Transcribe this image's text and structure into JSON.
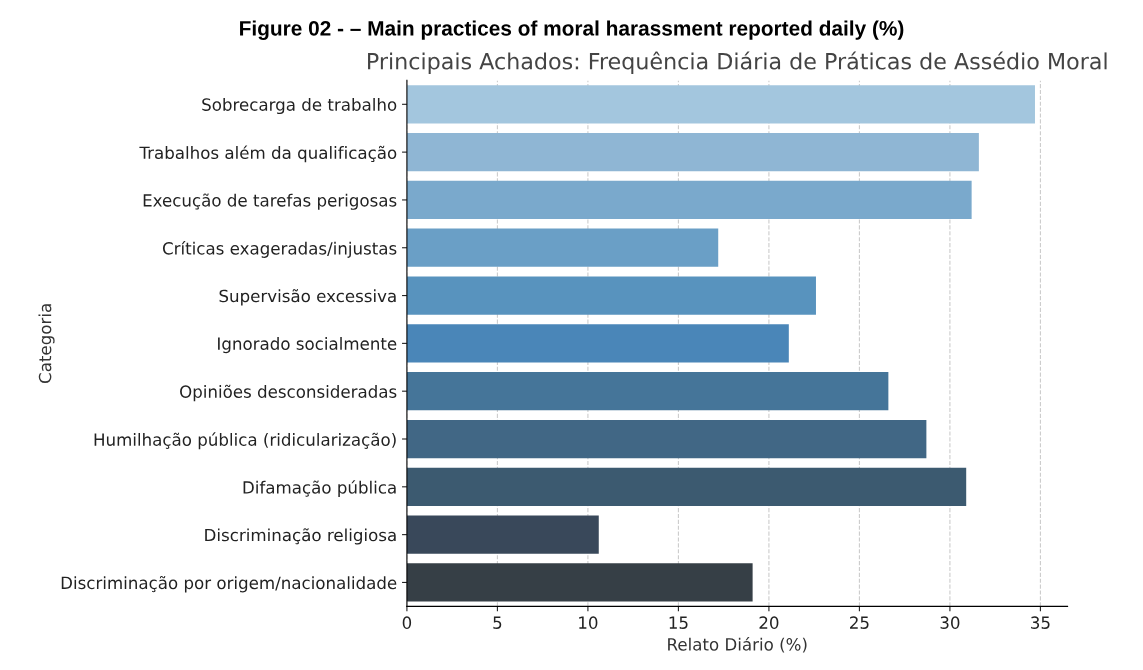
{
  "chart_data": {
    "type": "bar",
    "orientation": "horizontal",
    "title": "Figure 02 - – Main practices of moral harassment reported daily (%)",
    "subtitle": "Principais Achados: Frequência Diária de Práticas de Assédio Moral",
    "xlabel": "Relato Diário (%)",
    "ylabel": "Categoria",
    "categories": [
      "Sobrecarga de trabalho",
      "Trabalhos além da qualificação",
      "Execução de tarefas perigosas",
      "Críticas exageradas/injustas",
      "Supervisão excessiva",
      "Ignorado socialmente",
      "Opiniões desconsideradas",
      "Humilhação pública (ridicularização)",
      "Difamação pública",
      "Discriminação religiosa",
      "Discriminação por origem/nacionalidade"
    ],
    "values": [
      34.7,
      31.6,
      31.2,
      17.2,
      22.6,
      21.1,
      26.6,
      28.7,
      30.9,
      10.6,
      19.1
    ],
    "colors": [
      "#a3c6de",
      "#8fb6d4",
      "#7aa9cc",
      "#6a9fc6",
      "#5893be",
      "#4a86b8",
      "#457599",
      "#416785",
      "#3c5a70",
      "#39485a",
      "#363f46"
    ],
    "xlim": [
      0,
      36.5
    ],
    "xticks": [
      0,
      5,
      10,
      15,
      20,
      25,
      30,
      35
    ],
    "grid": "x"
  }
}
